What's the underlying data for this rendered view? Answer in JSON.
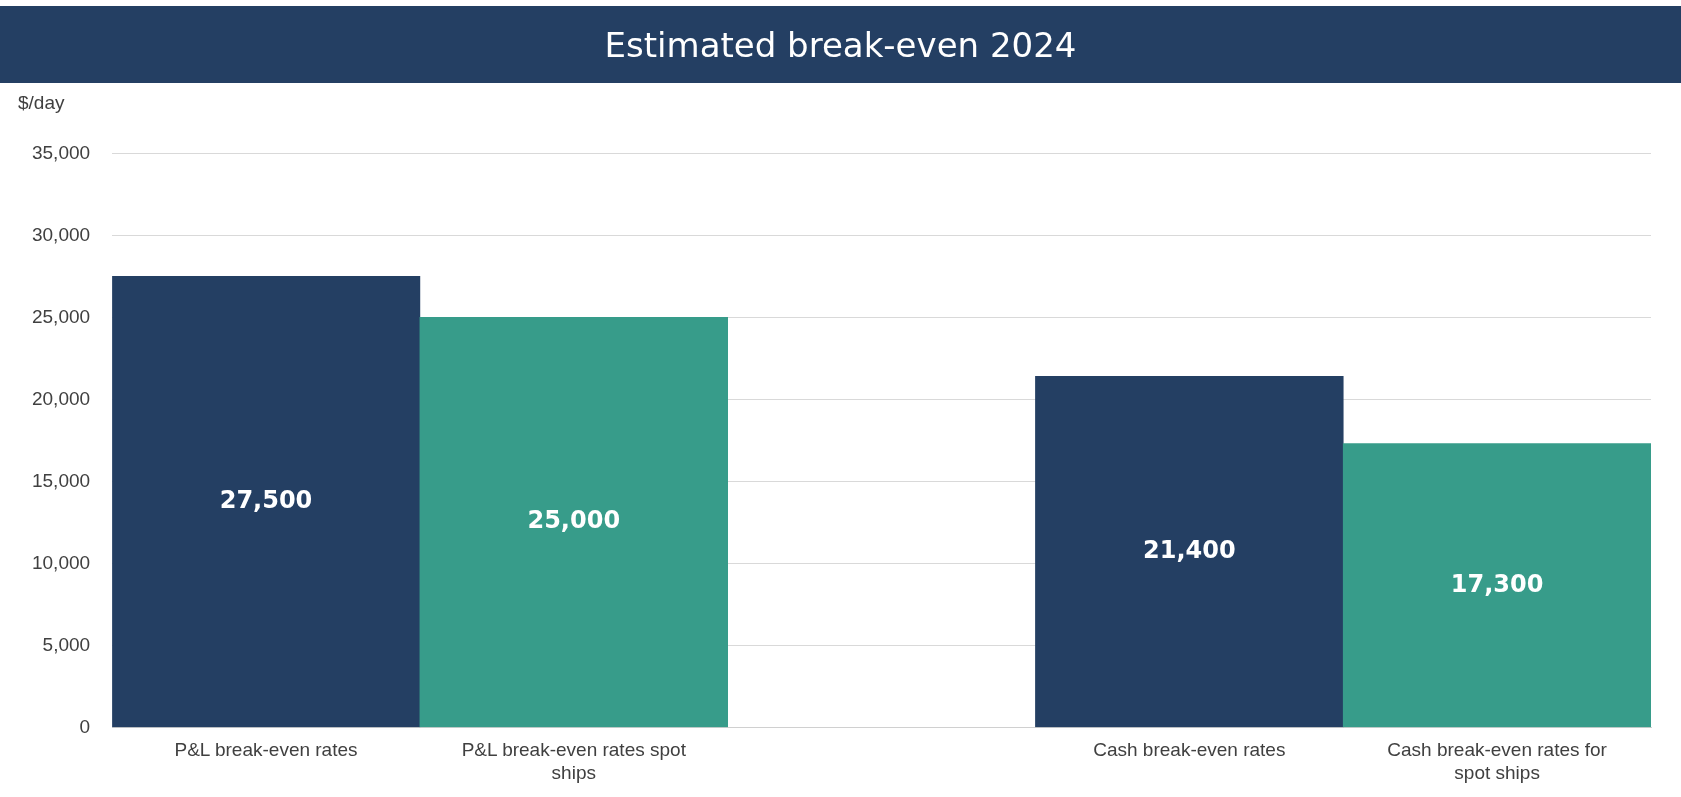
{
  "chart_data": {
    "type": "bar",
    "title": "Estimated break-even 2024",
    "ylabel": "$/day",
    "categories": [
      "P&L break-even rates",
      "P&L break-even rates spot ships",
      null,
      "Cash break-even rates",
      "Cash break-even rates for spot ships"
    ],
    "values": [
      27500,
      25000,
      null,
      21400,
      17300
    ],
    "value_labels": [
      "27,500",
      "25,000",
      null,
      "21,400",
      "17,300"
    ],
    "colors": [
      "#243f63",
      "#379c8a",
      "#243f63",
      "#243f63",
      "#379c8a"
    ],
    "ylim": [
      0,
      35000
    ],
    "yticks": [
      0,
      {
        "value": 5000,
        "label": "5,000"
      },
      {
        "value": 10000,
        "label": "10,000"
      },
      {
        "value": 15000,
        "label": "15,000"
      },
      {
        "value": 20000,
        "label": "20,000"
      },
      {
        "value": 25000,
        "label": "25,000"
      },
      {
        "value": 30000,
        "label": "30,000"
      },
      {
        "value": 35000,
        "label": "35,000"
      }
    ],
    "grid": "y",
    "legend": false
  }
}
